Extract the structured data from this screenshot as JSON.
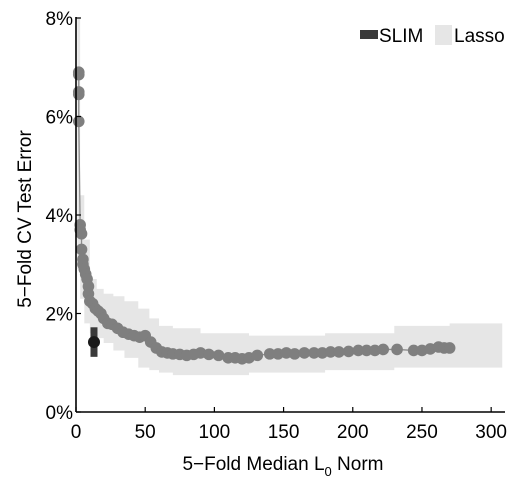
{
  "chart_data": {
    "type": "scatter",
    "title": "",
    "xlabel": "5−Fold Median L",
    "xlabel_sub": "0",
    "xlabel_suffix": " Norm",
    "ylabel": "5−Fold CV Test Error",
    "xlim": [
      0,
      310
    ],
    "ylim": [
      0,
      8
    ],
    "x_ticks": [
      0,
      50,
      100,
      150,
      200,
      250,
      300
    ],
    "x_tick_labels": [
      "0",
      "50",
      "100",
      "150",
      "200",
      "250",
      "300"
    ],
    "y_ticks": [
      0,
      2,
      4,
      6,
      8
    ],
    "y_tick_labels": [
      "0%",
      "2%",
      "4%",
      "6%",
      "8%"
    ],
    "grid": false,
    "legend": {
      "placement": "top-right",
      "entries": [
        {
          "name": "SLIM",
          "color": "#3a3a3a"
        },
        {
          "name": "Lasso",
          "color": "#e6e6e6"
        }
      ]
    },
    "series": [
      {
        "name": "SLIM",
        "color": "#1a1a1a",
        "points": [
          {
            "x": 13,
            "y": 1.42,
            "ymin": 1.12,
            "ymax": 1.72
          }
        ]
      },
      {
        "name": "Lasso",
        "color": "#7f7f7f",
        "line_color": "#8c8c8c",
        "band_color": "#e6e6e6",
        "points": [
          {
            "x": 2,
            "y": 6.9
          },
          {
            "x": 2,
            "y": 6.85
          },
          {
            "x": 2,
            "y": 6.5
          },
          {
            "x": 2,
            "y": 6.45
          },
          {
            "x": 2,
            "y": 5.9
          },
          {
            "x": 3,
            "y": 3.8
          },
          {
            "x": 3,
            "y": 3.7
          },
          {
            "x": 4,
            "y": 3.62
          },
          {
            "x": 4,
            "y": 3.3
          },
          {
            "x": 5,
            "y": 3.1
          },
          {
            "x": 5,
            "y": 3.0
          },
          {
            "x": 6,
            "y": 2.9
          },
          {
            "x": 7,
            "y": 2.8
          },
          {
            "x": 8,
            "y": 2.7
          },
          {
            "x": 9,
            "y": 2.55
          },
          {
            "x": 9,
            "y": 2.4
          },
          {
            "x": 10,
            "y": 2.25
          },
          {
            "x": 12,
            "y": 2.2
          },
          {
            "x": 14,
            "y": 2.1
          },
          {
            "x": 16,
            "y": 2.05
          },
          {
            "x": 18,
            "y": 2.0
          },
          {
            "x": 20,
            "y": 1.9
          },
          {
            "x": 23,
            "y": 1.8
          },
          {
            "x": 26,
            "y": 1.78
          },
          {
            "x": 30,
            "y": 1.7
          },
          {
            "x": 34,
            "y": 1.62
          },
          {
            "x": 38,
            "y": 1.58
          },
          {
            "x": 42,
            "y": 1.55
          },
          {
            "x": 46,
            "y": 1.52
          },
          {
            "x": 50,
            "y": 1.55
          },
          {
            "x": 54,
            "y": 1.42
          },
          {
            "x": 58,
            "y": 1.3
          },
          {
            "x": 62,
            "y": 1.22
          },
          {
            "x": 66,
            "y": 1.2
          },
          {
            "x": 70,
            "y": 1.18
          },
          {
            "x": 75,
            "y": 1.17
          },
          {
            "x": 80,
            "y": 1.15
          },
          {
            "x": 85,
            "y": 1.17
          },
          {
            "x": 90,
            "y": 1.2
          },
          {
            "x": 96,
            "y": 1.17
          },
          {
            "x": 103,
            "y": 1.15
          },
          {
            "x": 110,
            "y": 1.1
          },
          {
            "x": 115,
            "y": 1.1
          },
          {
            "x": 120,
            "y": 1.08
          },
          {
            "x": 125,
            "y": 1.1
          },
          {
            "x": 131,
            "y": 1.15
          },
          {
            "x": 140,
            "y": 1.18
          },
          {
            "x": 146,
            "y": 1.18
          },
          {
            "x": 152,
            "y": 1.2
          },
          {
            "x": 158,
            "y": 1.18
          },
          {
            "x": 165,
            "y": 1.2
          },
          {
            "x": 172,
            "y": 1.2
          },
          {
            "x": 178,
            "y": 1.2
          },
          {
            "x": 184,
            "y": 1.22
          },
          {
            "x": 190,
            "y": 1.22
          },
          {
            "x": 197,
            "y": 1.23
          },
          {
            "x": 204,
            "y": 1.25
          },
          {
            "x": 210,
            "y": 1.25
          },
          {
            "x": 216,
            "y": 1.25
          },
          {
            "x": 222,
            "y": 1.27
          },
          {
            "x": 232,
            "y": 1.27
          },
          {
            "x": 244,
            "y": 1.25
          },
          {
            "x": 250,
            "y": 1.25
          },
          {
            "x": 256,
            "y": 1.28
          },
          {
            "x": 262,
            "y": 1.32
          },
          {
            "x": 266,
            "y": 1.3
          },
          {
            "x": 270,
            "y": 1.3
          }
        ],
        "band": [
          {
            "x": 1,
            "lo": 3.1,
            "hi": 8.0
          },
          {
            "x": 3,
            "lo": 2.9,
            "hi": 4.4
          },
          {
            "x": 6,
            "lo": 2.3,
            "hi": 3.5
          },
          {
            "x": 10,
            "lo": 1.8,
            "hi": 2.7
          },
          {
            "x": 15,
            "lo": 1.6,
            "hi": 2.5
          },
          {
            "x": 20,
            "lo": 1.5,
            "hi": 2.4
          },
          {
            "x": 27,
            "lo": 1.4,
            "hi": 2.35
          },
          {
            "x": 35,
            "lo": 1.25,
            "hi": 2.25
          },
          {
            "x": 45,
            "lo": 1.1,
            "hi": 2.1
          },
          {
            "x": 53,
            "lo": 0.9,
            "hi": 1.9
          },
          {
            "x": 60,
            "lo": 0.85,
            "hi": 1.75
          },
          {
            "x": 70,
            "lo": 0.8,
            "hi": 1.7
          },
          {
            "x": 90,
            "lo": 0.75,
            "hi": 1.6
          },
          {
            "x": 125,
            "lo": 0.75,
            "hi": 1.55
          },
          {
            "x": 180,
            "lo": 0.8,
            "hi": 1.6
          },
          {
            "x": 230,
            "lo": 0.85,
            "hi": 1.75
          },
          {
            "x": 270,
            "lo": 0.9,
            "hi": 1.8
          },
          {
            "x": 308,
            "lo": 0.9,
            "hi": 1.8
          }
        ]
      }
    ]
  }
}
